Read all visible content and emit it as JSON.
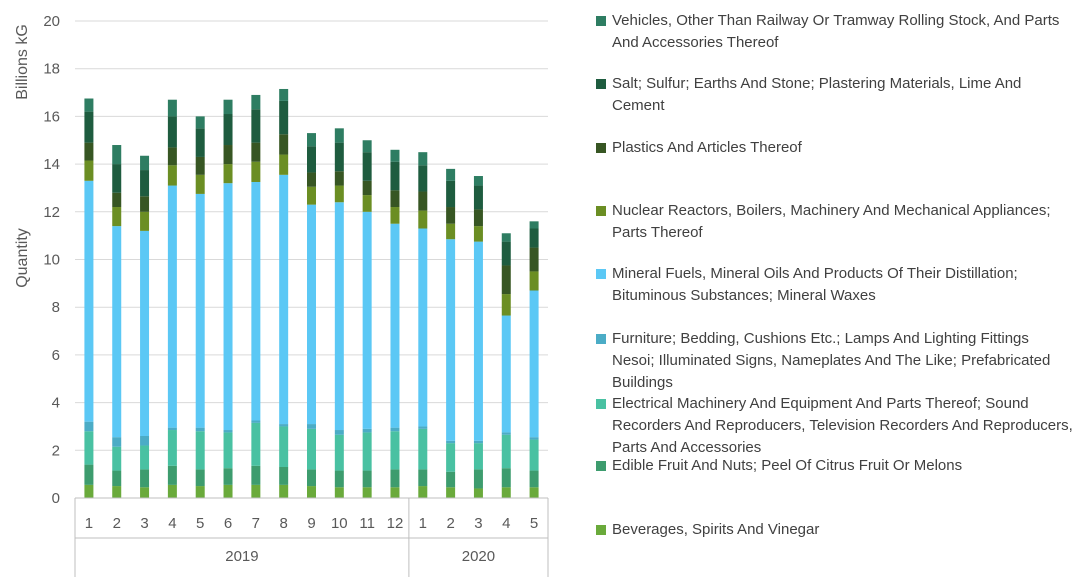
{
  "chart_data": {
    "type": "bar",
    "stacked": true,
    "ylabel": "Quantity",
    "yunit": "Billions kG",
    "ylim": [
      0,
      20
    ],
    "yticks": [
      0,
      2,
      4,
      6,
      8,
      10,
      12,
      14,
      16,
      18,
      20
    ],
    "grid": true,
    "legend_position": "right",
    "categories": [
      "1",
      "2",
      "3",
      "4",
      "5",
      "6",
      "7",
      "8",
      "9",
      "10",
      "11",
      "12",
      "1",
      "2",
      "3",
      "4",
      "5"
    ],
    "groups": [
      {
        "label": "2019",
        "count": 12
      },
      {
        "label": "2020",
        "count": 5
      }
    ],
    "series": [
      {
        "name": "Beverages, Spirits And Vinegar",
        "color": "#6aaa3b",
        "values": [
          0.55,
          0.5,
          0.45,
          0.55,
          0.5,
          0.55,
          0.55,
          0.55,
          0.5,
          0.45,
          0.45,
          0.45,
          0.5,
          0.45,
          0.4,
          0.45,
          0.45
        ]
      },
      {
        "name": "Edible Fruit And Nuts; Peel Of Citrus Fruit Or Melons",
        "color": "#3d9c6e",
        "values": [
          0.85,
          0.65,
          0.75,
          0.8,
          0.7,
          0.7,
          0.8,
          0.75,
          0.7,
          0.7,
          0.7,
          0.75,
          0.7,
          0.65,
          0.8,
          0.8,
          0.7
        ]
      },
      {
        "name": "Electrical Machinery And Equipment And Parts Thereof; Sound Recorders And Reproducers, Television Recorders And Reproducers, Parts And Accessories",
        "color": "#49c1a2",
        "values": [
          1.4,
          1.0,
          1.0,
          1.5,
          1.6,
          1.5,
          1.8,
          1.7,
          1.7,
          1.5,
          1.6,
          1.6,
          1.7,
          1.2,
          1.1,
          1.4,
          1.3
        ]
      },
      {
        "name": "Furniture; Bedding, Cushions Etc.; Lamps And Lighting Fittings Nesoi; Illuminated Signs, Nameplates And The Like; Prefabricated Buildings",
        "color": "#4bacc6",
        "values": [
          0.4,
          0.4,
          0.4,
          0.1,
          0.15,
          0.1,
          0.1,
          0.1,
          0.2,
          0.2,
          0.15,
          0.15,
          0.1,
          0.1,
          0.1,
          0.1,
          0.1
        ]
      },
      {
        "name": "Mineral Fuels, Mineral Oils And Products Of Their Distillation; Bituminous Substances; Mineral Waxes",
        "color": "#5bc8f5",
        "values": [
          10.1,
          8.85,
          8.6,
          10.15,
          9.8,
          10.35,
          10.0,
          10.45,
          9.2,
          9.55,
          9.1,
          8.55,
          8.3,
          8.45,
          8.35,
          4.9,
          6.15
        ]
      },
      {
        "name": "Nuclear Reactors, Boilers, Machinery And Mechanical Appliances; Parts Thereof",
        "color": "#6b8e23",
        "values": [
          0.85,
          0.8,
          0.8,
          0.85,
          0.8,
          0.8,
          0.85,
          0.85,
          0.75,
          0.7,
          0.7,
          0.7,
          0.75,
          0.65,
          0.65,
          0.9,
          0.8
        ]
      },
      {
        "name": "Plastics And Articles Thereof",
        "color": "#375623",
        "values": [
          0.75,
          0.6,
          0.65,
          0.75,
          0.75,
          0.8,
          0.8,
          0.85,
          0.6,
          0.6,
          0.6,
          0.7,
          0.8,
          0.7,
          0.7,
          1.2,
          1.0
        ]
      },
      {
        "name": "Salt; Sulfur; Earths And Stone; Plastering Materials, Lime And Cement",
        "color": "#1e5c3f",
        "values": [
          1.3,
          1.2,
          1.1,
          1.3,
          1.2,
          1.3,
          1.4,
          1.4,
          1.1,
          1.2,
          1.2,
          1.2,
          1.1,
          1.1,
          1.0,
          1.0,
          0.8
        ]
      },
      {
        "name": "Vehicles, Other Than Railway Or Tramway Rolling Stock, And Parts And Accessories Thereof",
        "color": "#2e7d62",
        "values": [
          0.55,
          0.8,
          0.6,
          0.7,
          0.5,
          0.6,
          0.6,
          0.5,
          0.55,
          0.6,
          0.5,
          0.5,
          0.55,
          0.5,
          0.4,
          0.35,
          0.3
        ]
      }
    ]
  }
}
